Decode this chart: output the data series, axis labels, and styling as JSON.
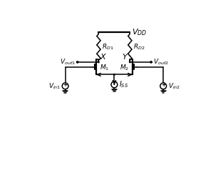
{
  "bg_color": "#ffffff",
  "line_color": "#000000",
  "fig_width": 3.13,
  "fig_height": 2.59,
  "dpi": 100,
  "vdd_label": "$V_{DD}$",
  "rd1_label": "$R_{D1}$",
  "rd2_label": "$R_{D2}$",
  "m1_label": "$M_1$",
  "m2_label": "$M_2$",
  "x_label": "$X$",
  "y_label": "$Y$",
  "vout1_label": "$V_{out1}$",
  "vout2_label": "$V_{out2}$",
  "vin1_label": "$V_{in1}$",
  "vin2_label": "$V_{in2}$",
  "iss_label": "$I_{SS}$",
  "lw": 1.1,
  "lw_thick": 1.6
}
